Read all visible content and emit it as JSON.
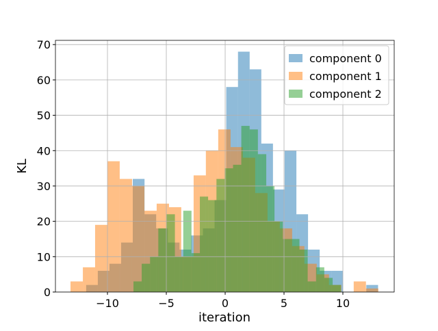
{
  "chart_data": {
    "type": "histogram",
    "xlabel": "iteration",
    "ylabel": "KL",
    "xlim": [
      -14.42,
      14.36
    ],
    "ylim": [
      0,
      71.2
    ],
    "xticks": [
      {
        "value": -10,
        "label": "−10"
      },
      {
        "value": -5,
        "label": "−5"
      },
      0,
      5,
      10
    ],
    "yticks": [
      0,
      10,
      20,
      30,
      40,
      50,
      60,
      70
    ],
    "grid": true,
    "legend": "upper right",
    "alpha": 0.5,
    "series": [
      {
        "name": "component 0",
        "color": "#1f77b4",
        "bins": [
          -11.81,
          -10.82,
          -9.83,
          -8.84,
          -7.85,
          -6.85,
          -5.86,
          -4.87,
          -3.88,
          -2.89,
          -1.89,
          -0.9,
          0.09,
          1.09,
          2.08,
          3.07,
          4.06,
          5.05,
          6.05,
          7.04,
          8.03,
          9.02,
          10.01,
          11.0,
          11.99,
          12.99
        ],
        "values": [
          2,
          6,
          8,
          14,
          32,
          22,
          18,
          14,
          12,
          16,
          18,
          26,
          58,
          68,
          63,
          42,
          29,
          40,
          22,
          12,
          6,
          6,
          0,
          0,
          2
        ]
      },
      {
        "name": "component 1",
        "color": "#ff7f0e",
        "bins": [
          -13.14,
          -12.09,
          -11.05,
          -10.0,
          -8.96,
          -7.91,
          -6.86,
          -5.82,
          -4.77,
          -3.73,
          -2.68,
          -1.64,
          -0.59,
          0.46,
          1.5,
          2.55,
          3.6,
          4.64,
          5.69,
          6.73,
          7.78,
          8.82,
          9.87,
          10.92,
          11.96,
          13.01
        ],
        "values": [
          3,
          7,
          19,
          37,
          32,
          30,
          23,
          25,
          24,
          10,
          33,
          40,
          46,
          41,
          38,
          28,
          20,
          18,
          13,
          8,
          5,
          2,
          0,
          3,
          1
        ]
      },
      {
        "name": "component 2",
        "color": "#2ca02c",
        "bins": [
          -7.79,
          -7.09,
          -6.38,
          -5.68,
          -4.97,
          -4.27,
          -3.56,
          -2.86,
          -2.15,
          -1.45,
          -0.74,
          -0.04,
          0.67,
          1.37,
          2.08,
          2.78,
          3.49,
          4.19,
          4.9,
          5.6,
          6.31,
          7.01,
          7.72,
          8.42,
          9.13,
          9.83
        ],
        "values": [
          3,
          8,
          10,
          18,
          22,
          10,
          23,
          11,
          27,
          26,
          32,
          35,
          36,
          47,
          46,
          39,
          30,
          20,
          15,
          15,
          12,
          3,
          7,
          4,
          2
        ]
      }
    ]
  }
}
